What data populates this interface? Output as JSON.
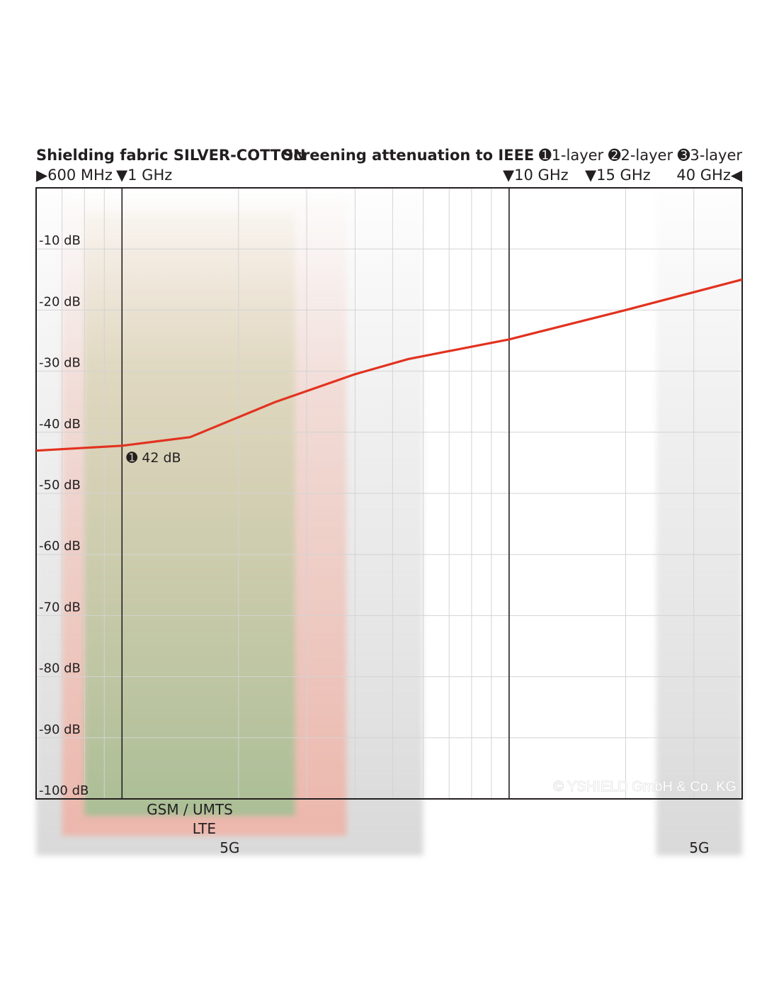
{
  "header": {
    "left_title": "Shielding fabric SILVER-COTTON",
    "right_title": "Screening attenuation to IEEE",
    "layer_1": "➊1-layer",
    "layer_2": "➋2-layer",
    "layer_3": "➌3-layer"
  },
  "frequency_markers": {
    "m600": "▶600 MHz",
    "m1g": "▼1 GHz",
    "m10g": "▼10 GHz",
    "m15g": "▼15 GHz",
    "m40g": "40 GHz◀"
  },
  "chart_data": {
    "type": "line",
    "title": "Shielding fabric SILVER-COTTON",
    "subtitle": "Screening attenuation to IEEE",
    "xlabel": "",
    "ylabel": "",
    "x_scale": "log",
    "x_unit": "GHz",
    "xlim": [
      0.6,
      40
    ],
    "ylim": [
      -100,
      0
    ],
    "y_tick_values": [
      -10,
      -20,
      -30,
      -40,
      -50,
      -60,
      -70,
      -80,
      -90,
      -100
    ],
    "y_tick_labels": [
      "-10 dB",
      "-20 dB",
      "-30 dB",
      "-40 dB",
      "-50 dB",
      "-60 dB",
      "-70 dB",
      "-80 dB",
      "-90 dB",
      "-100 dB"
    ],
    "grid": true,
    "series": [
      {
        "name": "1-layer",
        "color": "#e2321f",
        "x": [
          0.6,
          1.0,
          1.5,
          2.5,
          4.0,
          5.5,
          10.0,
          20.0,
          40.0
        ],
        "y": [
          -43,
          -42.2,
          -40.8,
          -35,
          -30.5,
          -28,
          -24.8,
          -20,
          -15
        ]
      }
    ],
    "annotations": [
      {
        "text": "➊ 42 dB",
        "x": 1.0,
        "y": -42
      }
    ],
    "marker_lines_x": [
      1.0,
      10.0
    ],
    "bands": [
      {
        "label": "GSM / UMTS",
        "from": 0.8,
        "to": 2.8,
        "color": "#8cab78"
      },
      {
        "label": "LTE",
        "from": 0.7,
        "to": 3.8,
        "color": "#f0a090"
      },
      {
        "label": "5G",
        "from": 0.6,
        "to": 6.0,
        "color": "#cfcfcf"
      },
      {
        "label": "5G",
        "from": 24.0,
        "to": 40.0,
        "color": "#cfcfcf"
      }
    ],
    "watermark": "© YSHIELD GmbH & Co. KG"
  }
}
